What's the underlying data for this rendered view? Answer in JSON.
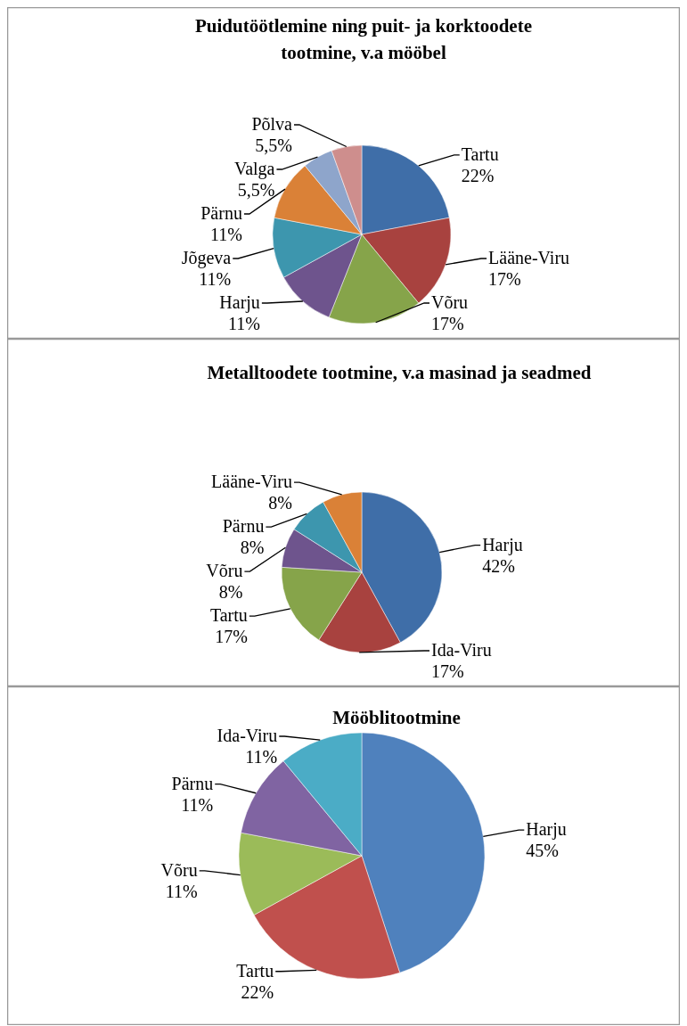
{
  "chart_data": [
    {
      "type": "pie",
      "title": "Puidutöötlemine ning puit- ja korktoodete tootmine, v.a mööbel",
      "categories": [
        "Tartu",
        "Lääne-Viru",
        "Võru",
        "Harju",
        "Jõgeva",
        "Pärnu",
        "Valga",
        "Põlva"
      ],
      "values": [
        22,
        17,
        17,
        11,
        11,
        11,
        5.5,
        5.5
      ],
      "value_labels": [
        "22%",
        "17%",
        "17%",
        "11%",
        "11%",
        "11%",
        "5,5%",
        "5,5%"
      ],
      "colors": [
        "#3f6ea8",
        "#a8423f",
        "#86a44a",
        "#6e548d",
        "#3d96ae",
        "#da8137",
        "#8ea5cb",
        "#ce8e8d"
      ]
    },
    {
      "type": "pie",
      "title": "Metalltoodete tootmine, v.a masinad ja seadmed",
      "categories": [
        "Harju",
        "Ida-Viru",
        "Tartu",
        "Võru",
        "Pärnu",
        "Lääne-Viru"
      ],
      "values": [
        42,
        17,
        17,
        8,
        8,
        8
      ],
      "value_labels": [
        "42%",
        "17%",
        "17%",
        "8%",
        "8%",
        "8%"
      ],
      "colors": [
        "#3f6ea8",
        "#a8423f",
        "#86a44a",
        "#6e548d",
        "#3d96ae",
        "#da8137"
      ]
    },
    {
      "type": "pie",
      "title": "Mööblitootmine",
      "categories": [
        "Harju",
        "Tartu",
        "Võru",
        "Pärnu",
        "Ida-Viru"
      ],
      "values": [
        45,
        22,
        11,
        11,
        11
      ],
      "value_labels": [
        "45%",
        "22%",
        "11%",
        "11%",
        "11%"
      ],
      "colors": [
        "#4f81bd",
        "#c0504d",
        "#9bbb59",
        "#8064a2",
        "#4bacc6"
      ]
    }
  ]
}
